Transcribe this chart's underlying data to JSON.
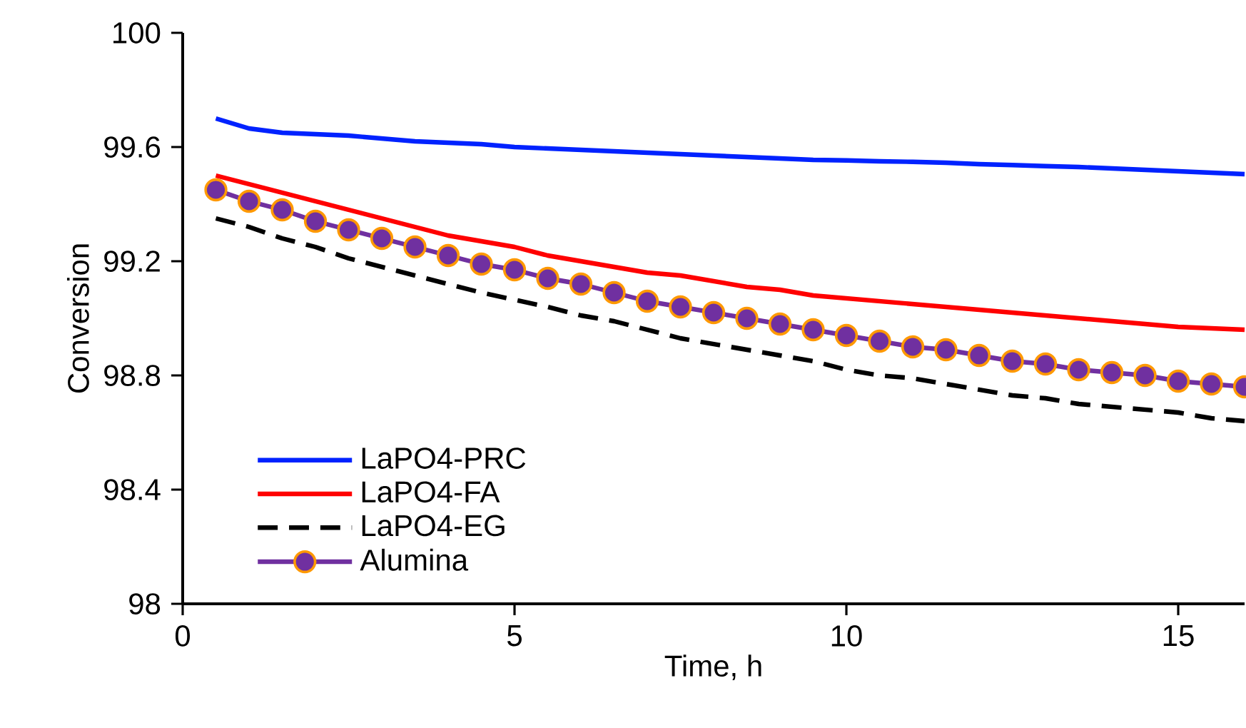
{
  "chart_data": {
    "type": "line",
    "xlabel": "Time, h",
    "ylabel": "Conversion",
    "x": [
      0.5,
      1,
      1.5,
      2,
      2.5,
      3,
      3.5,
      4,
      4.5,
      5,
      5.5,
      6,
      6.5,
      7,
      7.5,
      8,
      8.5,
      9,
      9.5,
      10,
      10.5,
      11,
      11.5,
      12,
      12.5,
      13,
      13.5,
      14,
      14.5,
      15,
      15.5,
      16
    ],
    "series": [
      {
        "name": "LaPO4-PRC",
        "color": "#0022ff",
        "line_style": "solid",
        "marker": "none",
        "values": [
          99.7,
          99.665,
          99.65,
          99.645,
          99.64,
          99.63,
          99.62,
          99.615,
          99.61,
          99.6,
          99.595,
          99.59,
          99.585,
          99.58,
          99.575,
          99.57,
          99.565,
          99.56,
          99.555,
          99.553,
          99.55,
          99.548,
          99.545,
          99.54,
          99.537,
          99.533,
          99.53,
          99.525,
          99.52,
          99.515,
          99.51,
          99.505
        ]
      },
      {
        "name": "LaPO4-FA",
        "color": "#ff0000",
        "line_style": "solid",
        "marker": "none",
        "values": [
          99.5,
          99.47,
          99.44,
          99.41,
          99.38,
          99.35,
          99.32,
          99.29,
          99.27,
          99.25,
          99.22,
          99.2,
          99.18,
          99.16,
          99.15,
          99.13,
          99.11,
          99.1,
          99.08,
          99.07,
          99.06,
          99.05,
          99.04,
          99.03,
          99.02,
          99.01,
          99.0,
          98.99,
          98.98,
          98.97,
          98.965,
          98.96
        ]
      },
      {
        "name": "LaPO4-EG",
        "color": "#000000",
        "line_style": "dashed",
        "marker": "none",
        "values": [
          99.35,
          99.32,
          99.28,
          99.25,
          99.21,
          99.18,
          99.15,
          99.12,
          99.09,
          99.065,
          99.04,
          99.01,
          98.99,
          98.96,
          98.93,
          98.91,
          98.89,
          98.87,
          98.85,
          98.82,
          98.8,
          98.79,
          98.77,
          98.75,
          98.73,
          98.72,
          98.7,
          98.69,
          98.68,
          98.67,
          98.65,
          98.64
        ]
      },
      {
        "name": "Alumina",
        "color": "#7030a0",
        "line_style": "solid",
        "marker": "circle",
        "values": [
          99.45,
          99.41,
          99.38,
          99.34,
          99.31,
          99.28,
          99.25,
          99.22,
          99.19,
          99.17,
          99.14,
          99.12,
          99.09,
          99.06,
          99.04,
          99.02,
          99.0,
          98.98,
          98.96,
          98.94,
          98.92,
          98.9,
          98.89,
          98.87,
          98.85,
          98.84,
          98.82,
          98.81,
          98.8,
          98.78,
          98.77,
          98.76
        ]
      }
    ],
    "xlim": [
      0,
      16
    ],
    "xticks": [
      0,
      5,
      10,
      15
    ],
    "ylim": [
      98,
      100
    ],
    "yticks": [
      {
        "value": 98,
        "label": "98"
      },
      {
        "value": 98.4,
        "label": "98.4"
      },
      {
        "value": 98.8,
        "label": "98.8"
      },
      {
        "value": 99.2,
        "label": "99.2"
      },
      {
        "value": 99.6,
        "label": "99.6"
      },
      {
        "value": 100,
        "label": "100"
      }
    ],
    "grid": false,
    "legend": "bottom left"
  }
}
